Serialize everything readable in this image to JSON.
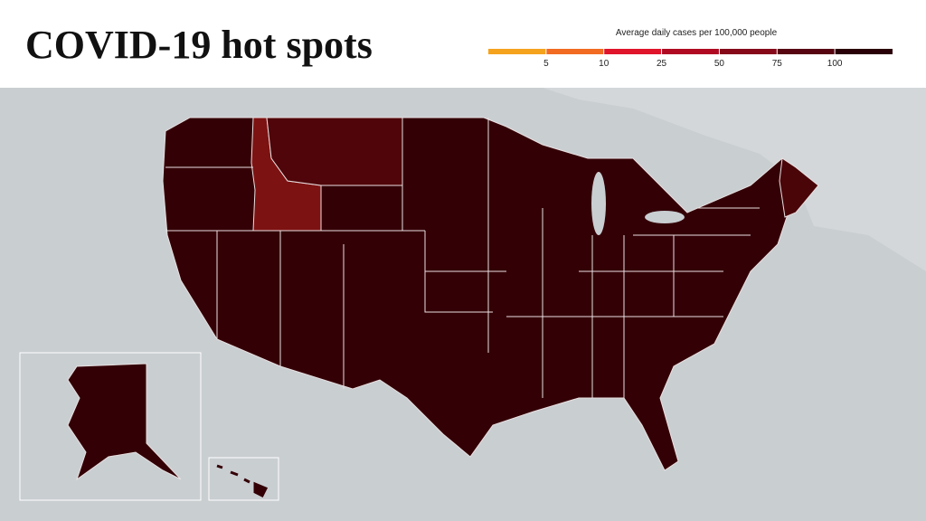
{
  "header": {
    "title": "COVID-19 hot spots"
  },
  "legend": {
    "title": "Average daily cases per 100,000 people",
    "ticks": [
      "5",
      "10",
      "25",
      "50",
      "75",
      "100"
    ],
    "colors": [
      "#f5a31f",
      "#f26b22",
      "#e0142b",
      "#b00a22",
      "#86091a",
      "#560511",
      "#2a0008"
    ]
  }
}
